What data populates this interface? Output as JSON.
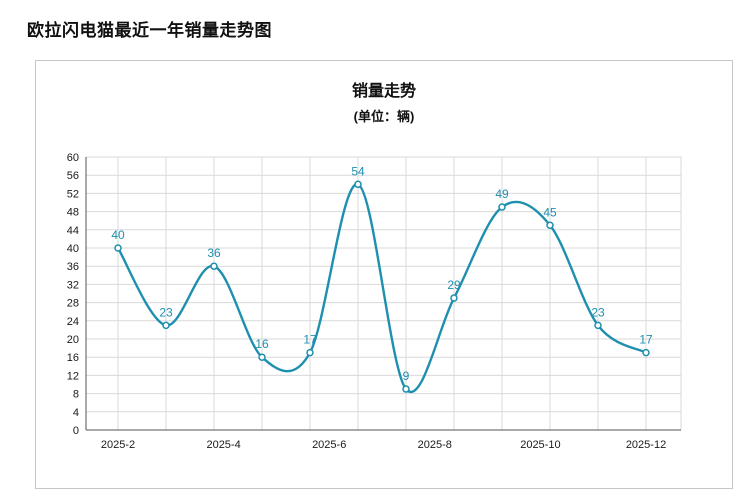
{
  "header": {
    "title": "欧拉闪电猫最近一年销量走势图"
  },
  "chart_data": {
    "type": "line",
    "title": "销量走势",
    "subtitle": "(单位：辆)",
    "series": [
      {
        "name": "销量",
        "values": [
          40,
          23,
          36,
          16,
          17,
          54,
          9,
          29,
          49,
          45,
          23,
          17
        ]
      }
    ],
    "point_labels": [
      40,
      23,
      36,
      16,
      17,
      54,
      9,
      29,
      49,
      45,
      23,
      17
    ],
    "x_tick_labels": [
      "2025-2",
      "2025-4",
      "2025-6",
      "2025-8",
      "2025-10",
      "2025-12"
    ],
    "ylim": [
      0,
      60
    ],
    "y_tick_step": 4,
    "grid": true,
    "smooth": true,
    "legend": "none",
    "line_color": "#1e8fae",
    "label_color": "#1e8fae",
    "point_fill": "#ffffff",
    "grid_color": "#d9d9d9",
    "axis_color": "#555555",
    "tick_text_color": "#1a1a1a"
  }
}
